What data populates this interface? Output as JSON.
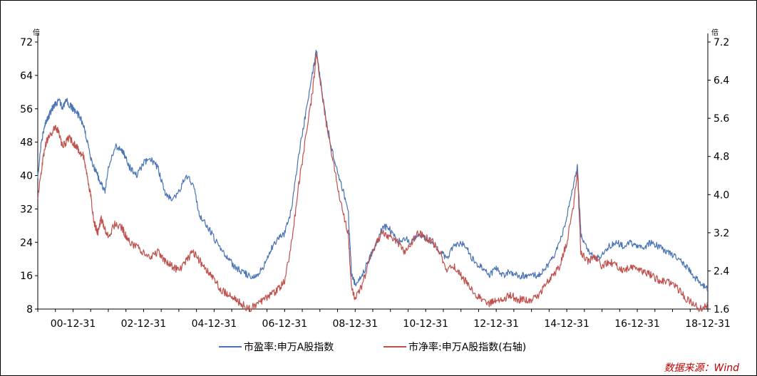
{
  "chart_data": {
    "type": "line",
    "left_unit": "倍",
    "right_unit": "倍",
    "ylim_left": [
      8,
      72
    ],
    "yticks_left": [
      "72",
      "64",
      "56",
      "48",
      "40",
      "32",
      "24",
      "16",
      "8"
    ],
    "ylim_right": [
      1.6,
      7.2
    ],
    "yticks_right": [
      "7.2",
      "6.4",
      "5.6",
      "4.8",
      "4.0",
      "3.2",
      "2.4",
      "1.6"
    ],
    "x_range": [
      2000.0,
      2019.0
    ],
    "xticks": [
      {
        "label": "00-12-31",
        "x": 2001.0
      },
      {
        "label": "02-12-31",
        "x": 2003.0
      },
      {
        "label": "04-12-31",
        "x": 2005.0
      },
      {
        "label": "06-12-31",
        "x": 2007.0
      },
      {
        "label": "08-12-31",
        "x": 2009.0
      },
      {
        "label": "10-12-31",
        "x": 2011.0
      },
      {
        "label": "12-12-31",
        "x": 2013.0
      },
      {
        "label": "14-12-31",
        "x": 2015.0
      },
      {
        "label": "16-12-31",
        "x": 2017.0
      },
      {
        "label": "18-12-31",
        "x": 2019.0
      }
    ],
    "series": [
      {
        "name": "市盈率:申万A股指数",
        "axis": "left",
        "color": "#4a74b4",
        "x": [
          2000.0,
          2000.1,
          2000.2,
          2000.3,
          2000.4,
          2000.5,
          2000.6,
          2000.7,
          2000.8,
          2000.9,
          2001.0,
          2001.1,
          2001.2,
          2001.3,
          2001.4,
          2001.5,
          2001.6,
          2001.7,
          2001.8,
          2001.9,
          2002.0,
          2002.2,
          2002.4,
          2002.45,
          2002.6,
          2002.8,
          2003.0,
          2003.2,
          2003.4,
          2003.6,
          2003.8,
          2004.0,
          2004.2,
          2004.4,
          2004.6,
          2004.8,
          2005.0,
          2005.2,
          2005.4,
          2005.6,
          2005.8,
          2006.0,
          2006.2,
          2006.4,
          2006.6,
          2006.8,
          2007.0,
          2007.2,
          2007.4,
          2007.6,
          2007.8,
          2007.9,
          2008.0,
          2008.2,
          2008.4,
          2008.6,
          2008.8,
          2008.9,
          2009.0,
          2009.2,
          2009.4,
          2009.6,
          2009.8,
          2010.0,
          2010.2,
          2010.4,
          2010.6,
          2010.8,
          2011.0,
          2011.2,
          2011.4,
          2011.6,
          2011.8,
          2012.0,
          2012.2,
          2012.4,
          2012.6,
          2012.8,
          2013.0,
          2013.2,
          2013.4,
          2013.6,
          2013.8,
          2014.0,
          2014.2,
          2014.4,
          2014.6,
          2014.8,
          2015.0,
          2015.2,
          2015.3,
          2015.4,
          2015.6,
          2015.8,
          2016.0,
          2016.2,
          2016.4,
          2016.6,
          2016.8,
          2017.0,
          2017.2,
          2017.4,
          2017.6,
          2017.8,
          2018.0,
          2018.2,
          2018.4,
          2018.6,
          2018.8,
          2019.0
        ],
        "y": [
          40,
          48,
          52,
          54,
          56,
          57,
          58,
          56,
          58,
          57,
          56,
          55,
          54,
          52,
          48,
          44,
          42,
          40,
          38,
          36,
          42,
          47,
          46,
          45,
          42,
          40,
          43,
          44,
          42,
          36,
          34,
          36,
          40,
          38,
          30,
          28,
          25,
          22,
          20,
          18,
          17,
          16,
          16,
          18,
          22,
          25,
          26,
          32,
          45,
          55,
          65,
          70,
          64,
          52,
          44,
          38,
          32,
          16,
          14,
          16,
          20,
          24,
          28,
          27,
          24,
          25,
          24,
          26,
          25,
          24,
          22,
          20,
          23,
          24,
          22,
          19,
          18,
          16,
          18,
          16,
          17,
          16,
          16,
          16,
          16,
          18,
          20,
          24,
          30,
          38,
          42,
          26,
          22,
          20,
          21,
          23,
          24,
          23,
          24,
          23,
          23,
          24,
          23,
          22,
          21,
          20,
          18,
          16,
          14,
          13
        ]
      },
      {
        "name": "市净率:申万A股指数(右轴)",
        "axis": "right",
        "color": "#c0504d",
        "x": [
          2000.0,
          2000.1,
          2000.2,
          2000.3,
          2000.4,
          2000.5,
          2000.6,
          2000.7,
          2000.8,
          2000.9,
          2001.0,
          2001.1,
          2001.2,
          2001.3,
          2001.4,
          2001.5,
          2001.6,
          2001.7,
          2001.8,
          2001.9,
          2002.0,
          2002.2,
          2002.4,
          2002.45,
          2002.6,
          2002.8,
          2003.0,
          2003.2,
          2003.4,
          2003.6,
          2003.8,
          2004.0,
          2004.2,
          2004.4,
          2004.6,
          2004.8,
          2005.0,
          2005.2,
          2005.4,
          2005.6,
          2005.8,
          2006.0,
          2006.2,
          2006.4,
          2006.6,
          2006.8,
          2007.0,
          2007.2,
          2007.4,
          2007.6,
          2007.8,
          2007.9,
          2008.0,
          2008.2,
          2008.4,
          2008.6,
          2008.8,
          2008.9,
          2009.0,
          2009.2,
          2009.4,
          2009.6,
          2009.8,
          2010.0,
          2010.2,
          2010.4,
          2010.6,
          2010.8,
          2011.0,
          2011.2,
          2011.4,
          2011.6,
          2011.8,
          2012.0,
          2012.2,
          2012.4,
          2012.6,
          2012.8,
          2013.0,
          2013.2,
          2013.4,
          2013.6,
          2013.8,
          2014.0,
          2014.2,
          2014.4,
          2014.6,
          2014.8,
          2015.0,
          2015.2,
          2015.3,
          2015.4,
          2015.6,
          2015.8,
          2016.0,
          2016.2,
          2016.4,
          2016.6,
          2016.8,
          2017.0,
          2017.2,
          2017.4,
          2017.6,
          2017.8,
          2018.0,
          2018.2,
          2018.4,
          2018.6,
          2018.8,
          2019.0
        ],
        "y": [
          3.9,
          4.5,
          5.0,
          5.2,
          5.3,
          5.4,
          5.3,
          5.0,
          5.1,
          5.2,
          5.1,
          5.0,
          4.9,
          4.8,
          4.4,
          4.0,
          3.4,
          3.2,
          3.5,
          3.3,
          3.1,
          3.4,
          3.3,
          3.2,
          3.0,
          2.9,
          2.8,
          2.7,
          2.8,
          2.6,
          2.5,
          2.4,
          2.6,
          2.8,
          2.6,
          2.4,
          2.2,
          2.0,
          1.9,
          1.8,
          1.7,
          1.6,
          1.7,
          1.8,
          1.9,
          2.0,
          2.2,
          3.0,
          4.2,
          5.2,
          6.2,
          7.0,
          6.4,
          5.4,
          4.6,
          3.8,
          3.2,
          2.0,
          1.8,
          2.1,
          2.6,
          3.0,
          3.2,
          3.1,
          3.0,
          2.8,
          3.0,
          3.2,
          3.1,
          3.0,
          2.8,
          2.4,
          2.5,
          2.3,
          2.1,
          1.9,
          1.8,
          1.7,
          1.8,
          1.8,
          1.9,
          1.8,
          1.8,
          1.8,
          1.9,
          2.1,
          2.3,
          2.5,
          3.0,
          3.8,
          4.5,
          2.8,
          2.6,
          2.7,
          2.5,
          2.6,
          2.5,
          2.4,
          2.5,
          2.4,
          2.4,
          2.3,
          2.2,
          2.2,
          2.1,
          2.0,
          1.8,
          1.7,
          1.6,
          1.7
        ]
      }
    ]
  },
  "source": "数据来源：Wind"
}
